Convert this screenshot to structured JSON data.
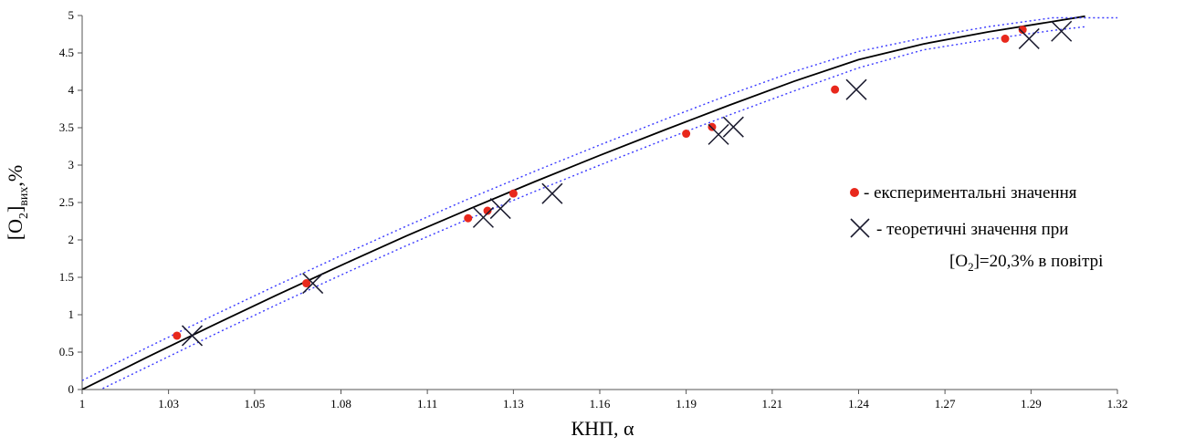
{
  "colors": {
    "fit_line": "#000000",
    "confidence_band": "#3a3aff",
    "experimental_marker": "#e8281c",
    "theoretical_marker": "#1a1a2e",
    "axis": "#555555"
  },
  "chart_data": {
    "type": "scatter",
    "xlabel": "КНП, α",
    "ylabel": {
      "pre": "[O",
      "sub1": "2",
      "mid": "]",
      "sub2": "вих",
      "post": ",%"
    },
    "xlim": [
      1,
      1.32
    ],
    "ylim": [
      0,
      5
    ],
    "x_ticks": [
      "1",
      "1.03",
      "1.05",
      "1.08",
      "1.11",
      "1.13",
      "1.16",
      "1.19",
      "1.21",
      "1.24",
      "1.27",
      "1.29",
      "1.32"
    ],
    "x_tick_values": [
      1,
      1.0267,
      1.0533,
      1.08,
      1.1067,
      1.1333,
      1.16,
      1.1867,
      1.2133,
      1.24,
      1.2667,
      1.2933,
      1.32
    ],
    "y_ticks": [
      "0",
      "0.5",
      "1",
      "1.5",
      "2",
      "2.5",
      "3",
      "3.5",
      "4",
      "4.5",
      "5"
    ],
    "y_tick_values": [
      0,
      0.5,
      1,
      1.5,
      2,
      2.5,
      3,
      3.5,
      4,
      4.5,
      5
    ],
    "grid": false,
    "legend_position": "right",
    "series": [
      {
        "name": "експериментальні значення",
        "marker": "dot",
        "points": [
          [
            1.0293,
            0.72
          ],
          [
            1.0693,
            1.42
          ],
          [
            1.1193,
            2.29
          ],
          [
            1.1253,
            2.39
          ],
          [
            1.1333,
            2.62
          ],
          [
            1.1867,
            3.42
          ],
          [
            1.1947,
            3.51
          ],
          [
            1.2327,
            4.01
          ],
          [
            1.2853,
            4.69
          ],
          [
            1.2907,
            4.81
          ]
        ]
      },
      {
        "name": "теоретичні значення при",
        "name_line2": {
          "pre": "[O",
          "sub": "2",
          "post": "]=20,3% в повітрі"
        },
        "marker": "cross",
        "points": [
          [
            1.034,
            0.72
          ],
          [
            1.0713,
            1.42
          ],
          [
            1.124,
            2.3
          ],
          [
            1.1293,
            2.42
          ],
          [
            1.1453,
            2.62
          ],
          [
            1.1967,
            3.41
          ],
          [
            1.2013,
            3.51
          ],
          [
            1.2393,
            4.01
          ],
          [
            1.2927,
            4.69
          ],
          [
            1.3027,
            4.79
          ]
        ]
      },
      {
        "name": "",
        "style": "solid-line",
        "x": [
          1.0,
          1.02,
          1.04,
          1.06,
          1.08,
          1.1,
          1.12,
          1.14,
          1.16,
          1.18,
          1.2,
          1.22,
          1.24,
          1.26,
          1.28,
          1.3,
          1.31
        ],
        "y": [
          0.0,
          0.43,
          0.85,
          1.26,
          1.66,
          2.05,
          2.42,
          2.78,
          3.13,
          3.47,
          3.8,
          4.12,
          4.41,
          4.62,
          4.78,
          4.92,
          4.99
        ]
      },
      {
        "name": "",
        "style": "dotted-line",
        "x": [
          1.0,
          1.02,
          1.04,
          1.06,
          1.08,
          1.1,
          1.12,
          1.14,
          1.16,
          1.18,
          1.2,
          1.22,
          1.24,
          1.26,
          1.28,
          1.3,
          1.32
        ],
        "y": [
          0.12,
          0.56,
          0.98,
          1.39,
          1.79,
          2.18,
          2.56,
          2.92,
          3.27,
          3.61,
          3.94,
          4.25,
          4.52,
          4.7,
          4.85,
          4.97,
          4.97
        ]
      },
      {
        "name": "",
        "style": "dotted-line",
        "x": [
          1.0,
          1.02,
          1.04,
          1.06,
          1.08,
          1.1,
          1.12,
          1.14,
          1.16,
          1.18,
          1.2,
          1.22,
          1.24,
          1.26,
          1.28,
          1.3,
          1.31
        ],
        "y": [
          -0.12,
          0.3,
          0.72,
          1.13,
          1.53,
          1.92,
          2.29,
          2.65,
          3.0,
          3.34,
          3.67,
          3.99,
          4.3,
          4.54,
          4.68,
          4.8,
          4.85
        ]
      }
    ]
  }
}
